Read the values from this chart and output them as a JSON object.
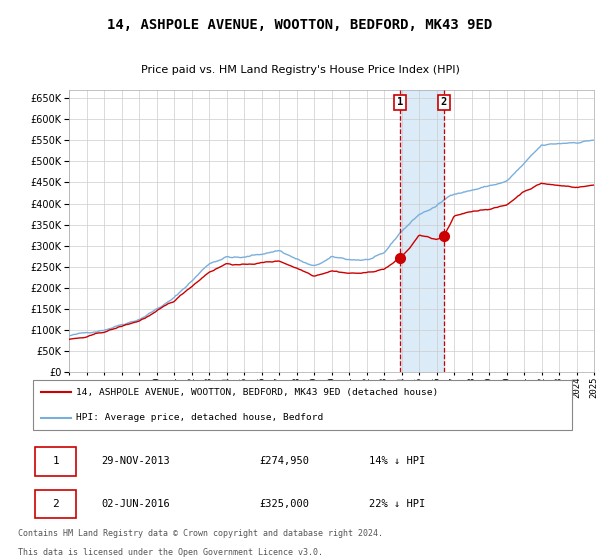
{
  "title": "14, ASHPOLE AVENUE, WOOTTON, BEDFORD, MK43 9ED",
  "subtitle": "Price paid vs. HM Land Registry's House Price Index (HPI)",
  "ylim": [
    0,
    670000
  ],
  "yticks": [
    0,
    50000,
    100000,
    150000,
    200000,
    250000,
    300000,
    350000,
    400000,
    450000,
    500000,
    550000,
    600000,
    650000
  ],
  "hpi_color": "#7aafdc",
  "price_color": "#cc0000",
  "bg_color": "#ffffff",
  "grid_color": "#cccccc",
  "transaction1_x": 2013.91,
  "transaction2_x": 2016.42,
  "transaction1_price": 274950,
  "transaction2_price": 325000,
  "legend_property": "14, ASHPOLE AVENUE, WOOTTON, BEDFORD, MK43 9ED (detached house)",
  "legend_hpi": "HPI: Average price, detached house, Bedford",
  "t1_date": "29-NOV-2013",
  "t1_price": "£274,950",
  "t1_pct": "14% ↓ HPI",
  "t2_date": "02-JUN-2016",
  "t2_price": "£325,000",
  "t2_pct": "22% ↓ HPI",
  "footer_line1": "Contains HM Land Registry data © Crown copyright and database right 2024.",
  "footer_line2": "This data is licensed under the Open Government Licence v3.0."
}
